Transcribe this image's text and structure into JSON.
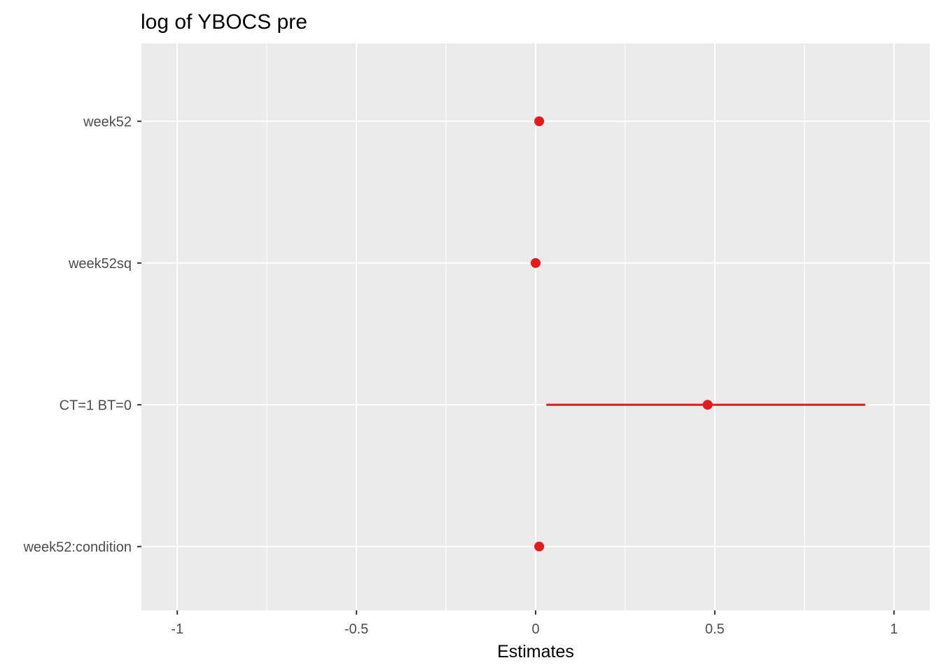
{
  "chart_data": {
    "type": "scatter",
    "title": "log of YBOCS pre",
    "xlabel": "Estimates",
    "ylabel": "",
    "xlim": [
      -1.1,
      1.1
    ],
    "x_ticks": [
      "-1",
      "-0.5",
      "0",
      "0.5",
      "1"
    ],
    "x_tick_values": [
      -1,
      -0.5,
      0,
      0.5,
      1
    ],
    "categories": [
      "week52",
      "week52sq",
      "CT=1 BT=0",
      "week52:condition"
    ],
    "estimates": [
      0.01,
      0.0,
      0.48,
      0.01
    ],
    "ci_low": [
      null,
      null,
      0.03,
      null
    ],
    "ci_high": [
      null,
      null,
      0.92,
      null
    ],
    "grid": true,
    "colors": {
      "panel": "#ebebeb",
      "grid": "#ffffff",
      "point": "#e41a1c"
    }
  }
}
